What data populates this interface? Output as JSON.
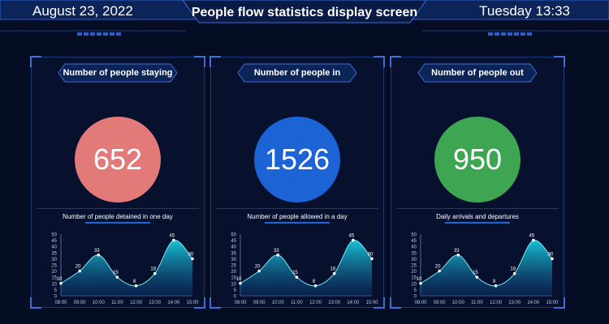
{
  "header": {
    "date": "August 23, 2022",
    "title": "People flow statistics display screen",
    "time": "Tuesday 13:33"
  },
  "colors": {
    "background": "#050d24",
    "staying": "#e37a7a",
    "in": "#1c63d5",
    "out": "#3ea652",
    "area_top": "#18c4d6",
    "area_bottom": "#0b2f6a"
  },
  "panels": [
    {
      "title": "Number of people staying",
      "value": "652",
      "subtitle": "Number of people detained in one day"
    },
    {
      "title": "Number of people in",
      "value": "1526",
      "subtitle": "Number of people allowed in a day"
    },
    {
      "title": "Number of people out",
      "value": "950",
      "subtitle": "Daily arrivals and departures"
    }
  ],
  "chart_data": [
    {
      "type": "area",
      "x": [
        "08:00",
        "09:00",
        "10:00",
        "11:00",
        "12:00",
        "13:00",
        "14:00",
        "15:00"
      ],
      "values": [
        10,
        20,
        33,
        15,
        8,
        18,
        45,
        30
      ],
      "ylim": [
        0,
        50
      ],
      "yticks": [
        "0",
        "5",
        "10",
        "15",
        "20",
        "25",
        "30",
        "35",
        "40",
        "45",
        "50"
      ],
      "grid": false
    },
    {
      "type": "area",
      "x": [
        "08:00",
        "09:00",
        "10:00",
        "11:00",
        "12:00",
        "13:00",
        "14:00",
        "15:00"
      ],
      "values": [
        10,
        20,
        33,
        15,
        8,
        18,
        45,
        30
      ],
      "ylim": [
        0,
        50
      ],
      "yticks": [
        "0",
        "5",
        "10",
        "15",
        "20",
        "25",
        "30",
        "35",
        "40",
        "45",
        "50"
      ],
      "grid": false
    },
    {
      "type": "area",
      "x": [
        "08:00",
        "09:00",
        "10:00",
        "11:00",
        "12:00",
        "13:00",
        "14:00",
        "15:00"
      ],
      "values": [
        10,
        20,
        33,
        15,
        8,
        18,
        45,
        30
      ],
      "ylim": [
        0,
        50
      ],
      "yticks": [
        "0",
        "5",
        "10",
        "15",
        "20",
        "25",
        "30",
        "35",
        "40",
        "45",
        "50"
      ],
      "grid": false
    }
  ]
}
